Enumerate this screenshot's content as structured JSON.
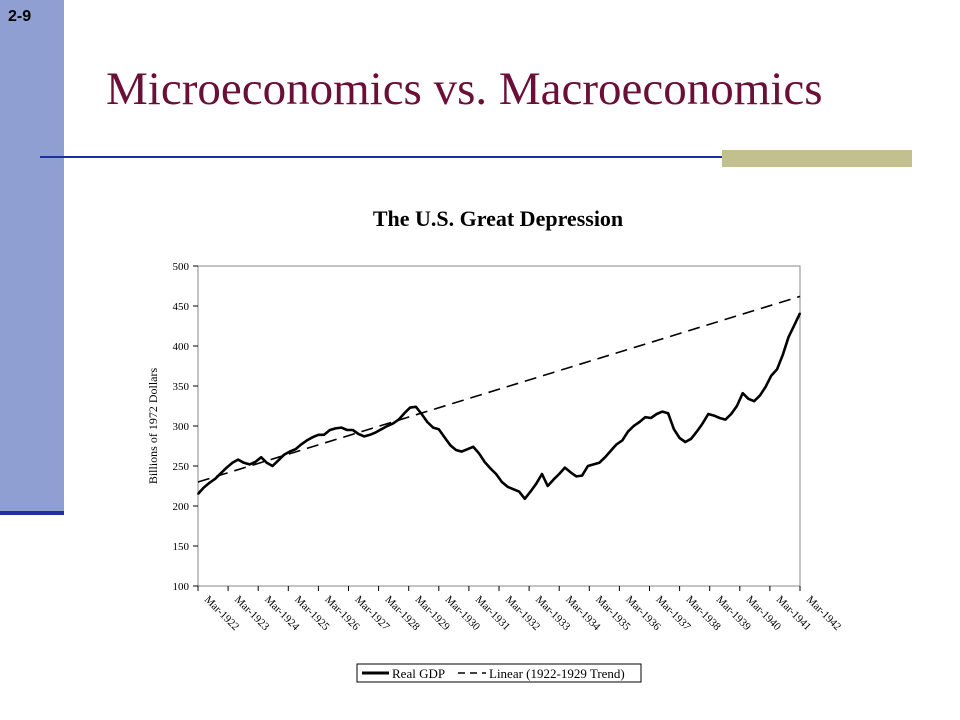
{
  "slide": {
    "number": "2-9",
    "title": "Microeconomics vs. Macroeconomics",
    "colors": {
      "sidebar": "#8f9fd2",
      "title": "#6a0f37",
      "rule": "#1f2ea0",
      "accent": "#c3c08f"
    }
  },
  "chart_data": {
    "type": "line",
    "title": "The U.S. Great Depression",
    "ylabel": "Billions of 1972 Dollars",
    "xlabel": "",
    "ylim": [
      100,
      500
    ],
    "yticks": [
      100,
      150,
      200,
      250,
      300,
      350,
      400,
      450,
      500
    ],
    "x_tick_labels": [
      "Mar-1922",
      "Mar-1923",
      "Mar-1924",
      "Mar-1925",
      "Mar-1926",
      "Mar-1927",
      "Mar-1928",
      "Mar-1929",
      "Mar-1930",
      "Mar-1931",
      "Mar-1932",
      "Mar-1933",
      "Mar-1934",
      "Mar-1935",
      "Mar-1936",
      "Mar-1937",
      "Mar-1938",
      "Mar-1939",
      "Mar-1940",
      "Mar-1941",
      "Mar-1942"
    ],
    "x_unit": "quarter",
    "grid": false,
    "legend_position": "bottom",
    "series": [
      {
        "name": "Real GDP",
        "style": "solid",
        "values": [
          215,
          223,
          229,
          234,
          241,
          248,
          254,
          258,
          254,
          252,
          255,
          261,
          254,
          250,
          257,
          264,
          268,
          271,
          277,
          282,
          286,
          289,
          289,
          295,
          297,
          298,
          295,
          295,
          290,
          287,
          289,
          292,
          296,
          300,
          303,
          308,
          316,
          323,
          324,
          315,
          305,
          298,
          296,
          286,
          276,
          270,
          268,
          271,
          274,
          266,
          255,
          247,
          240,
          230,
          224,
          221,
          218,
          209,
          218,
          228,
          240,
          225,
          233,
          240,
          248,
          242,
          237,
          238,
          250,
          252,
          254,
          261,
          269,
          277,
          282,
          293,
          300,
          305,
          311,
          310,
          315,
          318,
          316,
          296,
          285,
          280,
          284,
          293,
          303,
          315,
          313,
          310,
          308,
          315,
          325,
          341,
          334,
          331,
          338,
          349,
          363,
          371,
          389,
          411,
          426,
          441
        ]
      },
      {
        "name": "Linear (1922-1929 Trend)",
        "style": "dashed",
        "start": 230,
        "end": 462
      }
    ]
  }
}
